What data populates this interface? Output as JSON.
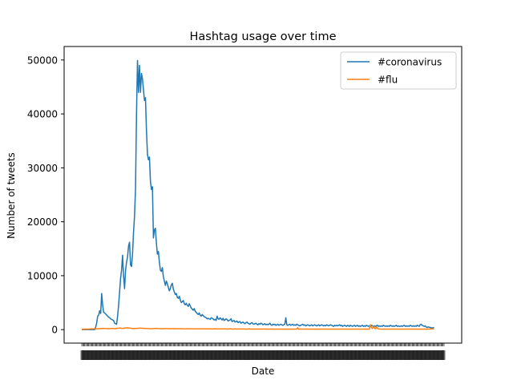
{
  "chart_data": {
    "type": "line",
    "title": "Hashtag usage over time",
    "xlabel": "Date",
    "ylabel": "Number of tweets",
    "ylim": [
      -2500,
      52500
    ],
    "yticks": [
      0,
      10000,
      20000,
      30000,
      40000,
      50000
    ],
    "x_count": 365,
    "x_tick_labels_note": "",
    "legend_position": "top-right",
    "grid": false,
    "series": [
      {
        "name": "#coronavirus",
        "color": "#1f77b4",
        "values": [
          0,
          0,
          0,
          0,
          0,
          0,
          0,
          0,
          0,
          0,
          0,
          0,
          0,
          0,
          500,
          1200,
          2500,
          2700,
          3500,
          3000,
          6700,
          4500,
          3200,
          3100,
          2900,
          2700,
          2500,
          2300,
          2200,
          2000,
          1900,
          1800,
          1700,
          1200,
          1100,
          1000,
          2500,
          4500,
          7000,
          9500,
          11000,
          13800,
          10000,
          7600,
          11000,
          12500,
          13500,
          15500,
          16200,
          12000,
          11700,
          14000,
          18000,
          21000,
          26000,
          40000,
          49900,
          44000,
          49000,
          44000,
          47500,
          46500,
          44500,
          42500,
          43000,
          37000,
          32500,
          31500,
          32000,
          27500,
          26000,
          26500,
          17000,
          18500,
          18800,
          16000,
          14000,
          14500,
          12500,
          11000,
          10800,
          11500,
          9800,
          9000,
          8200,
          9000,
          8500,
          7800,
          7200,
          7600,
          8300,
          8600,
          7500,
          7000,
          6500,
          6700,
          6000,
          5800,
          6200,
          5500,
          5000,
          5200,
          5400,
          4800,
          4600,
          4900,
          4500,
          4300,
          4800,
          4400,
          4000,
          3800,
          3600,
          3900,
          3400,
          3200,
          3000,
          2800,
          3100,
          2700,
          2500,
          2800,
          2600,
          2400,
          2300,
          2200,
          2000,
          2100,
          2000,
          1900,
          2200,
          2100,
          2000,
          1800,
          1900,
          1700,
          2500,
          2000,
          1900,
          2200,
          2000,
          1800,
          2100,
          1700,
          1800,
          2000,
          1900,
          1600,
          1700,
          1800,
          2000,
          1500,
          1600,
          1700,
          1400,
          1500,
          1600,
          1300,
          1400,
          1500,
          1200,
          1300,
          1400,
          1200,
          1100,
          1300,
          1400,
          1200,
          1100,
          1000,
          1200,
          1300,
          1100,
          1000,
          1100,
          1200,
          1000,
          900,
          1100,
          1000,
          1200,
          1100,
          900,
          1000,
          1100,
          900,
          1000,
          900,
          1000,
          1200,
          900,
          800,
          1000,
          900,
          1000,
          800,
          900,
          1000,
          800,
          900,
          1000,
          900,
          800,
          900,
          1000,
          2200,
          900,
          800,
          900,
          1000,
          800,
          900,
          1000,
          800,
          900,
          800,
          1000,
          900,
          800,
          700,
          800,
          900,
          1000,
          800,
          900,
          700,
          800,
          900,
          800,
          700,
          800,
          900,
          700,
          800,
          900,
          800,
          700,
          800,
          900,
          700,
          800,
          900,
          800,
          700,
          800,
          700,
          900,
          800,
          700,
          800,
          900,
          800,
          700,
          600,
          800,
          700,
          800,
          700,
          800,
          900,
          700,
          800,
          600,
          700,
          800,
          700,
          600,
          800,
          700,
          600,
          800,
          700,
          600,
          700,
          800,
          600,
          700,
          800,
          600,
          700,
          600,
          700,
          800,
          600,
          700,
          600,
          800,
          700,
          600,
          700,
          600,
          800,
          700,
          600,
          700,
          600,
          700,
          800,
          600,
          700,
          600,
          700,
          600,
          800,
          700,
          600,
          700,
          600,
          700,
          600,
          800,
          700,
          600,
          700,
          600,
          700,
          800,
          600,
          700,
          600,
          600,
          700,
          600,
          700,
          800,
          600,
          700,
          600,
          700,
          600,
          800,
          700,
          600,
          700,
          600,
          700,
          600,
          800,
          700,
          600,
          900,
          1000,
          800,
          700,
          600,
          700,
          500,
          400,
          500,
          450,
          400,
          350,
          300,
          350,
          400
        ]
      },
      {
        "name": "#flu",
        "color": "#ff7f0e",
        "values": [
          60,
          70,
          80,
          90,
          100,
          110,
          100,
          90,
          120,
          130,
          150,
          140,
          160,
          170,
          180,
          160,
          150,
          170,
          190,
          200,
          210,
          220,
          230,
          210,
          200,
          190,
          180,
          170,
          190,
          200,
          210,
          220,
          200,
          190,
          180,
          230,
          250,
          260,
          280,
          300,
          240,
          220,
          260,
          280,
          300,
          320,
          340,
          300,
          280,
          260,
          240,
          220,
          200,
          210,
          220,
          230,
          240,
          250,
          260,
          270,
          260,
          250,
          240,
          230,
          220,
          210,
          200,
          190,
          180,
          170,
          180,
          190,
          200,
          210,
          220,
          230,
          210,
          200,
          190,
          180,
          170,
          160,
          170,
          180,
          190,
          200,
          190,
          180,
          170,
          160,
          170,
          180,
          190,
          180,
          170,
          160,
          150,
          160,
          170,
          180,
          170,
          160,
          150,
          140,
          150,
          160,
          170,
          160,
          150,
          140,
          150,
          160,
          150,
          140,
          130,
          140,
          150,
          160,
          150,
          140,
          130,
          140,
          150,
          160,
          150,
          140,
          130,
          140,
          150,
          140,
          130,
          120,
          130,
          140,
          150,
          140,
          130,
          120,
          130,
          140,
          130,
          120,
          130,
          140,
          130,
          120,
          110,
          120,
          130,
          140,
          130,
          120,
          110,
          120,
          130,
          120,
          110,
          120,
          130,
          120,
          110,
          120,
          130,
          120,
          110,
          100,
          110,
          120,
          130,
          120,
          110,
          100,
          110,
          120,
          110,
          100,
          110,
          120,
          110,
          100,
          110,
          120,
          110,
          100,
          110,
          120,
          110,
          100,
          90,
          100,
          110,
          120,
          110,
          100,
          90,
          100,
          110,
          100,
          90,
          100,
          110,
          100,
          90,
          100,
          110,
          100,
          90,
          100,
          110,
          100,
          90,
          100,
          110,
          100,
          90,
          100,
          110,
          350,
          100,
          90,
          100,
          110,
          100,
          90,
          100,
          110,
          100,
          90,
          100,
          110,
          100,
          90,
          100,
          110,
          100,
          90,
          100,
          110,
          100,
          90,
          100,
          110,
          100,
          90,
          100,
          110,
          100,
          90,
          100,
          110,
          100,
          90,
          100,
          110,
          100,
          90,
          100,
          110,
          100,
          90,
          100,
          110,
          100,
          90,
          100,
          110,
          100,
          90,
          100,
          110,
          100,
          90,
          100,
          110,
          100,
          90,
          100,
          110,
          100,
          90,
          100,
          110,
          100,
          90,
          100,
          110,
          100,
          90,
          100,
          110,
          900,
          400,
          200,
          600,
          300,
          150,
          500,
          250,
          150,
          120,
          110,
          100,
          90,
          100,
          110,
          100,
          90,
          100,
          110,
          100,
          90,
          100,
          110,
          100,
          90,
          100,
          110,
          100,
          90,
          100,
          110,
          100,
          90,
          100,
          110,
          100,
          90,
          100,
          110,
          100,
          90,
          100,
          110,
          100,
          90,
          100,
          110,
          100,
          90,
          100,
          110,
          100,
          90,
          100,
          110,
          100,
          90,
          100,
          110,
          100,
          120,
          130,
          140,
          150,
          160
        ]
      }
    ]
  }
}
